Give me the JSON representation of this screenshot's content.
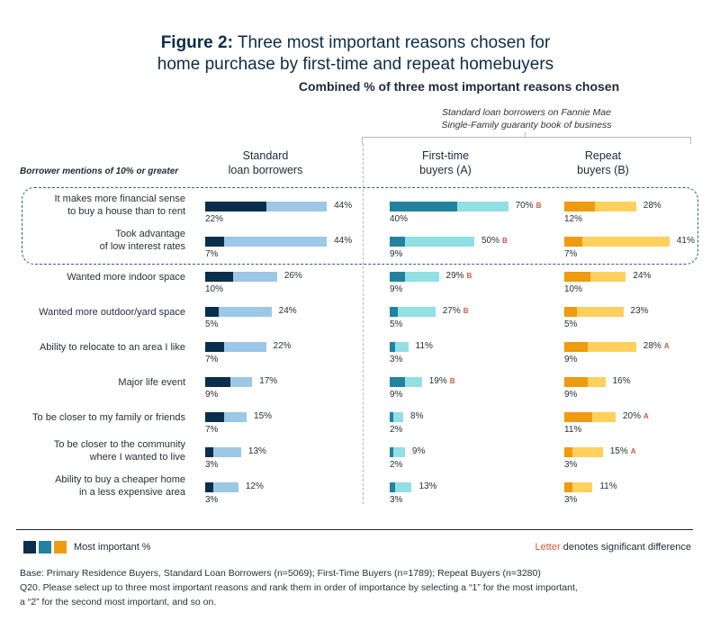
{
  "title": {
    "prefix": "Figure 2:",
    "line1": "Three most important reasons chosen for",
    "line2": "home purchase by first-time and repeat homebuyers"
  },
  "subtitle": "Combined % of three most important reasons chosen",
  "bracket_note": {
    "line1": "Standard loan borrowers on Fannie Mae",
    "line2": "Single-Family guaranty book of business"
  },
  "row_header": "Borrower mentions of 10% or greater",
  "columns": [
    {
      "line1": "Standard",
      "line2": "loan borrowers"
    },
    {
      "line1": "First-time",
      "line2": "buyers (A)"
    },
    {
      "line1": "Repeat",
      "line2": "buyers (B)"
    }
  ],
  "legend": {
    "label": "Most important %",
    "colors": [
      "#0b2f4b",
      "#2282a0",
      "#ef9b0f"
    ],
    "sig_word": "Letter",
    "sig_rest": "denotes significant difference",
    "sig_color": "#d2553a"
  },
  "footnotes": [
    "Base: Primary Residence Buyers, Standard Loan Borrowers (n=5069); First-Time Buyers (n=1789); Repeat Buyers (n=3280)",
    "Q20. Please select up to three most important reasons and rank them in order of importance by selecting a “1” for the most important,",
    "a “2” for the second most important, and so on."
  ],
  "chart_data": {
    "type": "bar",
    "orientation": "horizontal",
    "title": "Figure 2: Three most important reasons chosen for home purchase by first-time and repeat homebuyers",
    "subtitle": "Combined % of three most important reasons chosen",
    "value_unit": "%",
    "categories": [
      "It makes more financial sense to buy a house than to rent",
      "Took advantage of low interest rates",
      "Wanted more indoor space",
      "Wanted more outdoor/yard space",
      "Ability to relocate to an area I like",
      "Major life event",
      "To be closer to my family or friends",
      "To be closer to the community where I wanted to live",
      "Ability to buy a cheaper home in a less expensive area"
    ],
    "category_lines": [
      [
        "It makes more financial sense",
        "to buy a house than to rent"
      ],
      [
        "Took advantage",
        "of low interest rates"
      ],
      [
        "Wanted more indoor space"
      ],
      [
        "Wanted more outdoor/yard space"
      ],
      [
        "Ability to relocate to an area I like"
      ],
      [
        "Major life event"
      ],
      [
        "To be closer to my family or friends"
      ],
      [
        "To be closer to the community",
        "where I wanted to live"
      ],
      [
        "Ability to buy a cheaper home",
        "in a less expensive area"
      ]
    ],
    "highlighted_categories": [
      0,
      1
    ],
    "series": [
      {
        "name": "Standard loan borrowers",
        "combined": [
          44,
          44,
          26,
          24,
          22,
          17,
          15,
          13,
          12
        ],
        "most_important": [
          22,
          7,
          10,
          5,
          7,
          9,
          7,
          3,
          3
        ],
        "significance": [
          "",
          "",
          "",
          "",
          "",
          "",
          "",
          "",
          ""
        ],
        "color_most": "#0b2f4b",
        "color_combined": "#9cc7e6"
      },
      {
        "name": "First-time buyers (A)",
        "combined": [
          70,
          50,
          29,
          27,
          11,
          19,
          8,
          9,
          13
        ],
        "most_important": [
          40,
          9,
          9,
          5,
          3,
          9,
          2,
          2,
          3
        ],
        "significance": [
          "B",
          "B",
          "B",
          "B",
          "",
          "B",
          "",
          "",
          ""
        ],
        "color_most": "#2282a0",
        "color_combined": "#90e0e4"
      },
      {
        "name": "Repeat buyers (B)",
        "combined": [
          28,
          41,
          24,
          23,
          28,
          16,
          20,
          15,
          11
        ],
        "most_important": [
          12,
          7,
          10,
          5,
          9,
          9,
          11,
          3,
          3
        ],
        "significance": [
          "",
          "",
          "",
          "",
          "A",
          "",
          "A",
          "A",
          ""
        ],
        "color_most": "#ef9b0f",
        "color_combined": "#ffd05c"
      }
    ],
    "legend": "bottom-left",
    "grid": false
  }
}
